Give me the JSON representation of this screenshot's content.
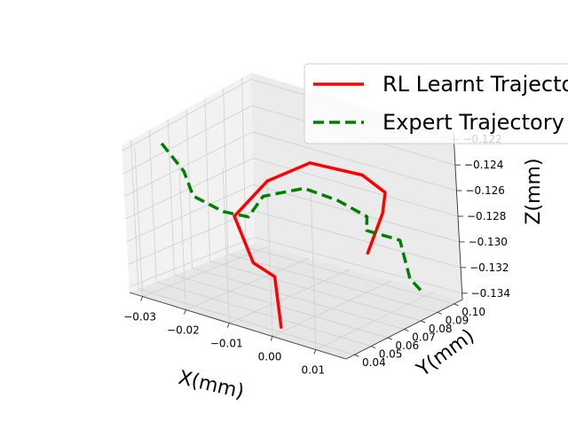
{
  "chart_data": {
    "type": "line",
    "projection": "3d",
    "title": "",
    "xlabel": "X(mm)",
    "ylabel": "Y(mm)",
    "zlabel": "Z(mm)",
    "xticks": [
      "−0.03",
      "−0.02",
      "−0.01",
      "0.00",
      "0.01"
    ],
    "yticks": [
      "0.04",
      "0.05",
      "0.06",
      "0.07",
      "0.08",
      "0.09",
      "0.10"
    ],
    "zticks": [
      "−0.134",
      "−0.132",
      "−0.130",
      "−0.128",
      "−0.126",
      "−0.124",
      "−0.122"
    ],
    "xlim": [
      -0.033,
      0.017
    ],
    "ylim": [
      0.035,
      0.105
    ],
    "zlim": [
      -0.1345,
      -0.1215
    ],
    "grid": true,
    "legend_position": "top-right",
    "series": [
      {
        "name": "RL Learnt Trajectory",
        "color": "#ff0000",
        "style": "solid",
        "points": [
          [
            0.0,
            0.04,
            -0.134
          ],
          [
            -0.003,
            0.045,
            -0.1302
          ],
          [
            -0.01,
            0.05,
            -0.1301
          ],
          [
            -0.016,
            0.055,
            -0.127
          ],
          [
            -0.01,
            0.06,
            -0.1235
          ],
          [
            -0.004,
            0.07,
            -0.1218
          ],
          [
            0.006,
            0.075,
            -0.122
          ],
          [
            0.009,
            0.08,
            -0.1235
          ],
          [
            0.006,
            0.085,
            -0.126
          ],
          [
            0.005,
            0.078,
            -0.1292
          ]
        ]
      },
      {
        "name": "Expert Trajectory",
        "color": "#008000",
        "style": "dashed",
        "points": [
          [
            -0.03,
            0.05,
            -0.1219
          ],
          [
            -0.026,
            0.052,
            -0.124
          ],
          [
            -0.025,
            0.054,
            -0.1262
          ],
          [
            -0.019,
            0.056,
            -0.127
          ],
          [
            -0.014,
            0.058,
            -0.127
          ],
          [
            -0.012,
            0.062,
            -0.1252
          ],
          [
            -0.004,
            0.066,
            -0.1238
          ],
          [
            0.002,
            0.07,
            -0.1244
          ],
          [
            0.007,
            0.074,
            -0.1255
          ],
          [
            0.005,
            0.078,
            -0.1272
          ],
          [
            0.011,
            0.082,
            -0.1276
          ],
          [
            0.012,
            0.084,
            -0.131
          ],
          [
            0.013,
            0.088,
            -0.1323
          ]
        ]
      }
    ]
  }
}
